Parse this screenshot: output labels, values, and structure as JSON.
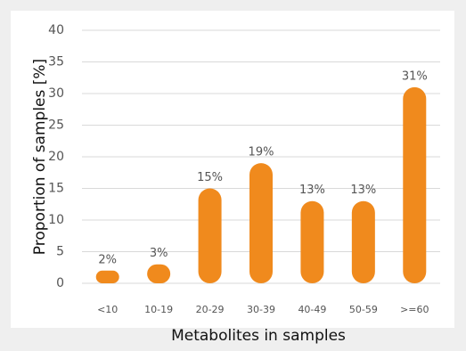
{
  "chart_data": {
    "type": "bar",
    "x_label": "Metabolites in samples",
    "y_label": "Proportion of samples [%]",
    "categories": [
      "<10",
      "10-19",
      "20-29",
      "30-39",
      "40-49",
      "50-59",
      ">=60"
    ],
    "values": [
      2,
      3,
      15,
      19,
      13,
      13,
      31
    ],
    "value_labels": [
      "2%",
      "3%",
      "15%",
      "19%",
      "13%",
      "13%",
      "31%"
    ],
    "color": "#f08a1d",
    "ylim": [
      0,
      40
    ],
    "yticks": [
      0,
      5,
      10,
      15,
      20,
      25,
      30,
      35,
      40
    ],
    "grid": true
  }
}
